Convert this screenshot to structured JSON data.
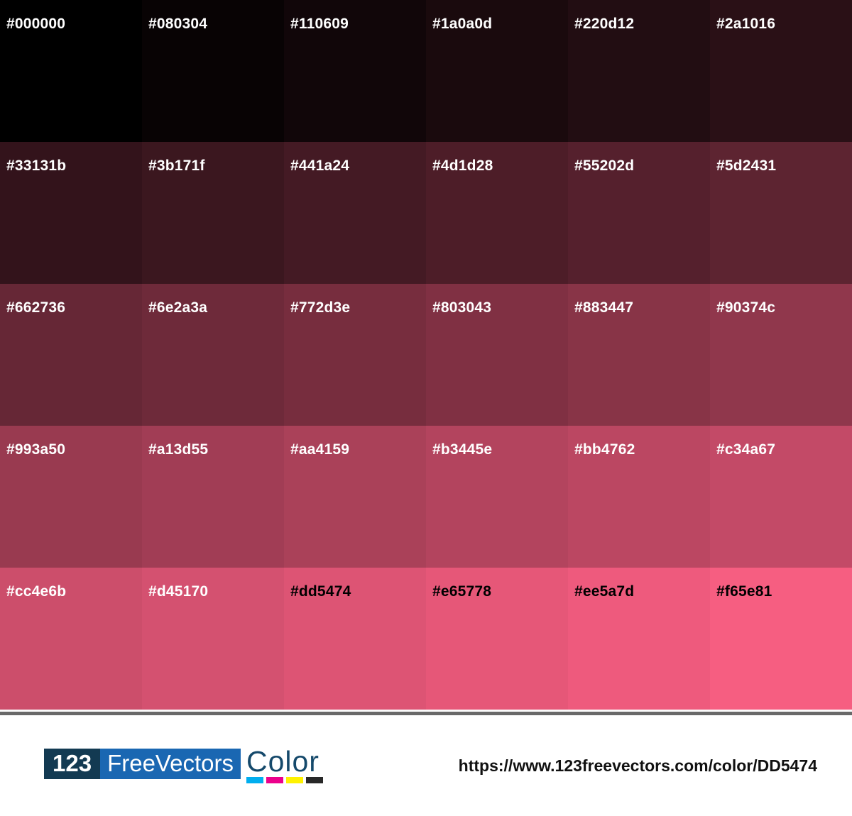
{
  "palette": {
    "base_color": "#dd5474",
    "swatches": [
      {
        "hex": "#000000",
        "label_color": "#ffffff"
      },
      {
        "hex": "#080304",
        "label_color": "#ffffff"
      },
      {
        "hex": "#110609",
        "label_color": "#ffffff"
      },
      {
        "hex": "#1a0a0d",
        "label_color": "#ffffff"
      },
      {
        "hex": "#220d12",
        "label_color": "#ffffff"
      },
      {
        "hex": "#2a1016",
        "label_color": "#ffffff"
      },
      {
        "hex": "#33131b",
        "label_color": "#ffffff"
      },
      {
        "hex": "#3b171f",
        "label_color": "#ffffff"
      },
      {
        "hex": "#441a24",
        "label_color": "#ffffff"
      },
      {
        "hex": "#4d1d28",
        "label_color": "#ffffff"
      },
      {
        "hex": "#55202d",
        "label_color": "#ffffff"
      },
      {
        "hex": "#5d2431",
        "label_color": "#ffffff"
      },
      {
        "hex": "#662736",
        "label_color": "#ffffff"
      },
      {
        "hex": "#6e2a3a",
        "label_color": "#ffffff"
      },
      {
        "hex": "#772d3e",
        "label_color": "#ffffff"
      },
      {
        "hex": "#803043",
        "label_color": "#ffffff"
      },
      {
        "hex": "#883447",
        "label_color": "#ffffff"
      },
      {
        "hex": "#90374c",
        "label_color": "#ffffff"
      },
      {
        "hex": "#993a50",
        "label_color": "#ffffff"
      },
      {
        "hex": "#a13d55",
        "label_color": "#ffffff"
      },
      {
        "hex": "#aa4159",
        "label_color": "#ffffff"
      },
      {
        "hex": "#b3445e",
        "label_color": "#ffffff"
      },
      {
        "hex": "#bb4762",
        "label_color": "#ffffff"
      },
      {
        "hex": "#c34a67",
        "label_color": "#ffffff"
      },
      {
        "hex": "#cc4e6b",
        "label_color": "#ffffff"
      },
      {
        "hex": "#d45170",
        "label_color": "#ffffff"
      },
      {
        "hex": "#dd5474",
        "label_color": "#000000"
      },
      {
        "hex": "#e65778",
        "label_color": "#000000"
      },
      {
        "hex": "#ee5a7d",
        "label_color": "#000000"
      },
      {
        "hex": "#f65e81",
        "label_color": "#000000"
      }
    ]
  },
  "divider": {
    "gray_color": "#696969"
  },
  "footer": {
    "logo": {
      "number_text": "123",
      "brand_text": "FreeVectors",
      "wordmark_text": "Color",
      "number_box_color": "#133a52",
      "brand_box_color": "#1a67b2",
      "wordmark_color": "#15496b",
      "cmyk_bar_colors": [
        "#00aeef",
        "#ec008c",
        "#fff200",
        "#282828"
      ]
    },
    "url": "https://www.123freevectors.com/color/DD5474"
  }
}
